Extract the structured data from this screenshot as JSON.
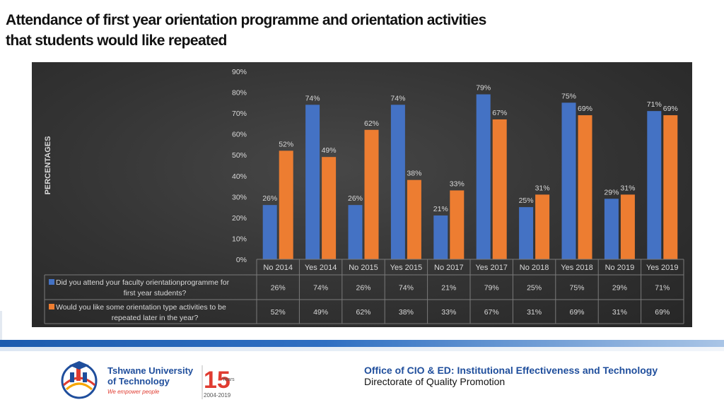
{
  "title": {
    "line1": "Attendance of first year orientation programme and orientation activities",
    "line2": "that students would like repeated"
  },
  "colors": {
    "series1": "#4472c4",
    "series2": "#ed7d31",
    "panel": "#383838",
    "text": "#d9d9d9",
    "accent_blue": "#1f4e9c"
  },
  "chart_data": {
    "type": "bar",
    "title": "",
    "xlabel": "",
    "ylabel": "PERCENTAGES",
    "ylim": [
      0,
      90
    ],
    "yticks": [
      "0%",
      "10%",
      "20%",
      "30%",
      "40%",
      "50%",
      "60%",
      "70%",
      "80%",
      "90%"
    ],
    "grid": false,
    "legend": "data table",
    "categories": [
      "No 2014",
      "Yes 2014",
      "No 2015",
      "Yes 2015",
      "No 2017",
      "Yes 2017",
      "No 2018",
      "Yes 2018",
      "No 2019",
      "Yes 2019"
    ],
    "series": [
      {
        "name": "Did you attend your faculty orientationprogramme for first year students?",
        "name_lines": [
          "Did you attend your faculty orientationprogramme for",
          "first year students?"
        ],
        "values": [
          26,
          74,
          26,
          74,
          21,
          79,
          25,
          75,
          29,
          71
        ],
        "labels": [
          "26%",
          "74%",
          "26%",
          "74%",
          "21%",
          "79%",
          "25%",
          "75%",
          "29%",
          "71%"
        ]
      },
      {
        "name": "Would you like some orientation type activities to be repeated later in the year?",
        "name_lines": [
          "Would you like some orientation type activities to be",
          "repeated later in the year?"
        ],
        "values": [
          52,
          49,
          62,
          38,
          33,
          67,
          31,
          69,
          31,
          69
        ],
        "labels": [
          "52%",
          "49%",
          "62%",
          "38%",
          "33%",
          "67%",
          "31%",
          "69%",
          "31%",
          "69%"
        ]
      }
    ]
  },
  "logo": {
    "line1": "Tshwane University",
    "line2": "of Technology",
    "tagline": "We empower people",
    "anniv_number": "15",
    "anniv_word": "Years",
    "anniv_range": "2004-2019"
  },
  "office": {
    "line1": "Office of CIO & ED: Institutional  Effectiveness and Technology",
    "line2": "Directorate of Quality Promotion"
  }
}
